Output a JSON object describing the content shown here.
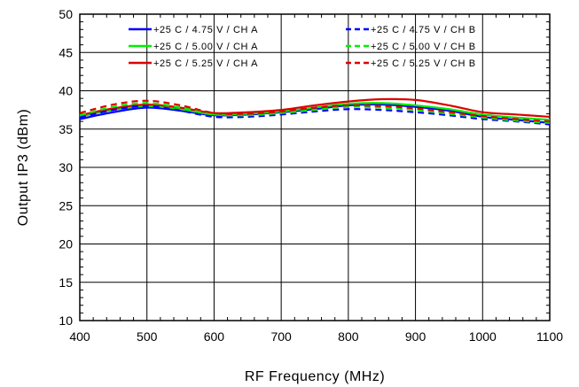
{
  "chart_data": {
    "type": "line",
    "title": "",
    "xlabel": "RF Frequency (MHz)",
    "ylabel": "Output IP3 (dBm)",
    "xlim": [
      400,
      1100
    ],
    "ylim": [
      10,
      50
    ],
    "xticks": [
      400,
      500,
      600,
      700,
      800,
      900,
      1000,
      1100
    ],
    "yticks": [
      10,
      15,
      20,
      25,
      30,
      35,
      40,
      45,
      50
    ],
    "grid": true,
    "legend": "top, two columns",
    "x": [
      400,
      450,
      500,
      550,
      600,
      650,
      700,
      750,
      800,
      850,
      900,
      950,
      1000,
      1050,
      1100
    ],
    "series": [
      {
        "name": "+25 C / 4.75 V / CH A",
        "color": "#0000ff",
        "dash": "solid",
        "values": [
          36.3,
          37.2,
          37.8,
          37.4,
          36.8,
          36.9,
          37.2,
          37.6,
          38.1,
          38.2,
          37.9,
          37.4,
          36.6,
          36.2,
          35.8
        ]
      },
      {
        "name": "+25 C / 5.00 V / CH A",
        "color": "#00ee00",
        "dash": "solid",
        "values": [
          36.6,
          37.5,
          38.0,
          37.6,
          36.9,
          37.0,
          37.3,
          37.8,
          38.3,
          38.4,
          38.1,
          37.6,
          36.9,
          36.5,
          36.2
        ]
      },
      {
        "name": "+25 C / 5.25 V / CH A",
        "color": "#dd0000",
        "dash": "solid",
        "values": [
          36.8,
          37.7,
          38.2,
          37.8,
          37.1,
          37.2,
          37.5,
          38.1,
          38.6,
          38.9,
          38.8,
          38.1,
          37.2,
          36.9,
          36.6
        ]
      },
      {
        "name": "+25 C / 4.75 V / CH B",
        "color": "#0000ff",
        "dash": "dashed",
        "values": [
          36.5,
          37.5,
          38.0,
          37.4,
          36.6,
          36.6,
          36.9,
          37.3,
          37.6,
          37.5,
          37.2,
          36.8,
          36.3,
          36.0,
          35.6
        ]
      },
      {
        "name": "+25 C / 5.00 V / CH B",
        "color": "#00ee00",
        "dash": "dashed",
        "values": [
          36.8,
          37.9,
          38.4,
          37.8,
          36.9,
          36.8,
          37.1,
          37.5,
          37.9,
          37.8,
          37.5,
          37.0,
          36.5,
          36.1,
          35.8
        ]
      },
      {
        "name": "+25 C / 5.25 V / CH B",
        "color": "#dd0000",
        "dash": "dashed",
        "values": [
          37.1,
          38.2,
          38.7,
          38.1,
          37.1,
          37.0,
          37.3,
          37.8,
          38.1,
          38.0,
          37.7,
          37.2,
          36.7,
          36.3,
          36.0
        ]
      }
    ]
  }
}
